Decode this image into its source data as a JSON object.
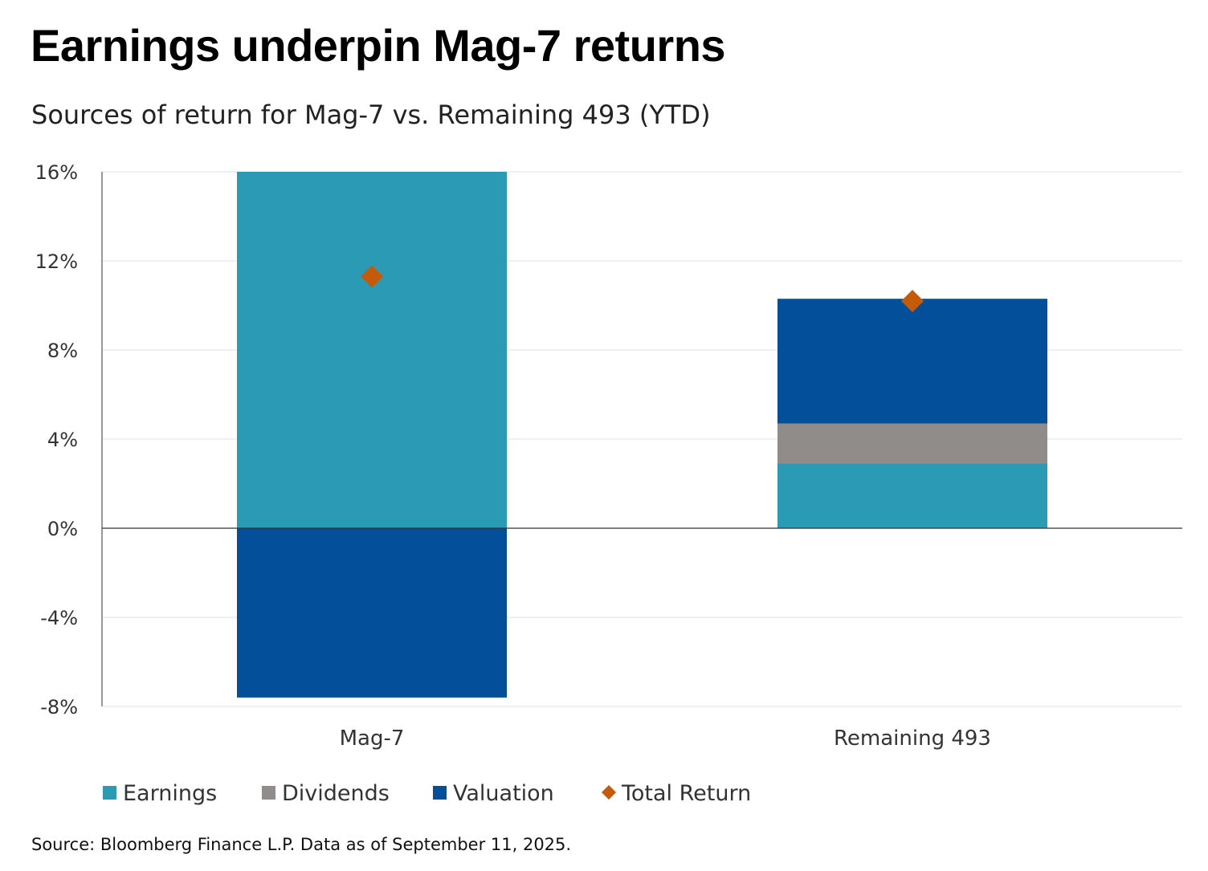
{
  "title": "Earnings underpin Mag-7 returns",
  "subtitle": "Sources of return for Mag-7 vs. Remaining 493 (YTD)",
  "source": "Source: Bloomberg Finance L.P. Data as of September 11, 2025.",
  "colors": {
    "earnings": "#2b9bb5",
    "dividends": "#8f8c89",
    "valuation": "#044f99",
    "total_return": "#c65a0b",
    "gridline": "#e2e2e2",
    "axis": "#333333"
  },
  "chart_data": {
    "type": "bar",
    "stacked": true,
    "title": "",
    "xlabel": "",
    "ylabel": "",
    "categories": [
      "Mag-7",
      "Remaining 493"
    ],
    "ylim": [
      -8,
      16
    ],
    "yticks": [
      -8,
      -4,
      0,
      4,
      8,
      12,
      16
    ],
    "ytick_labels": [
      "-8%",
      "-4%",
      "0%",
      "4%",
      "8%",
      "12%",
      "16%"
    ],
    "grid": true,
    "legend_position": "bottom",
    "series": [
      {
        "name": "Earnings",
        "kind": "bar",
        "values": [
          16.0,
          2.9
        ]
      },
      {
        "name": "Dividends",
        "kind": "bar",
        "values": [
          0.0,
          1.8
        ]
      },
      {
        "name": "Valuation",
        "kind": "bar",
        "values": [
          -7.6,
          5.6
        ]
      },
      {
        "name": "Total Return",
        "kind": "marker",
        "values": [
          11.3,
          10.2
        ]
      }
    ]
  }
}
